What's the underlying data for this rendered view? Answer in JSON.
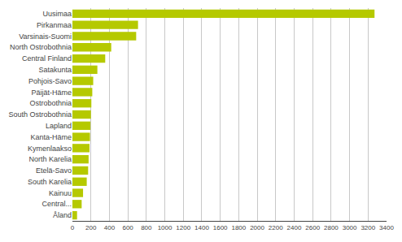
{
  "chart_data": {
    "type": "bar",
    "orientation": "horizontal",
    "categories": [
      "Åland",
      "Central...",
      "Kainuu",
      "South Karelia",
      "Etelä-Savo",
      "North Karelia",
      "Kymenlaakso",
      "Kanta-Häme",
      "Lapland",
      "South Ostrobothnia",
      "Ostrobothnia",
      "Päijät-Häme",
      "Pohjois-Savo",
      "Satakunta",
      "Central Finland",
      "North Ostrobothnia",
      "Varsinais-Suomi",
      "Pirkanmaa",
      "Uusimaa"
    ],
    "values": [
      50,
      100,
      115,
      155,
      170,
      175,
      185,
      190,
      195,
      200,
      205,
      215,
      225,
      270,
      355,
      420,
      690,
      710,
      3270
    ],
    "color": "#b5c900",
    "xlim": [
      0,
      3400
    ],
    "xticks": [
      0,
      200,
      400,
      600,
      800,
      1000,
      1200,
      1400,
      1600,
      1800,
      2000,
      2200,
      2400,
      2600,
      2800,
      3000,
      3200,
      3400
    ],
    "grid": true
  }
}
